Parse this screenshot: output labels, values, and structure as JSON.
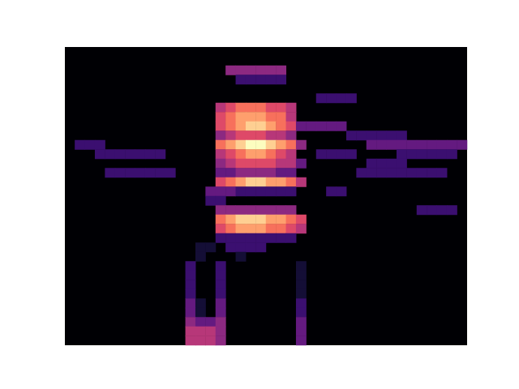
{
  "chart_data": {
    "type": "heatmap",
    "tick_labels": false,
    "grid": false,
    "xlim": [
      0,
      40
    ],
    "ylim": [
      0,
      32
    ],
    "value_range": [
      0,
      10
    ],
    "cells": [
      [
        16,
        29,
        4
      ],
      [
        17,
        29,
        4
      ],
      [
        18,
        29,
        4
      ],
      [
        19,
        29,
        4
      ],
      [
        20,
        29,
        4
      ],
      [
        21,
        29,
        4
      ],
      [
        17,
        28,
        2
      ],
      [
        18,
        28,
        2
      ],
      [
        19,
        28,
        2
      ],
      [
        20,
        28,
        2
      ],
      [
        21,
        28,
        2
      ],
      [
        25,
        26,
        2
      ],
      [
        26,
        26,
        2
      ],
      [
        27,
        26,
        2
      ],
      [
        28,
        26,
        2
      ],
      [
        15,
        25,
        5
      ],
      [
        16,
        25,
        6
      ],
      [
        17,
        25,
        7
      ],
      [
        18,
        25,
        7
      ],
      [
        19,
        25,
        7
      ],
      [
        20,
        25,
        6
      ],
      [
        21,
        25,
        6
      ],
      [
        22,
        25,
        5
      ],
      [
        15,
        24,
        6
      ],
      [
        16,
        24,
        7
      ],
      [
        17,
        24,
        8
      ],
      [
        18,
        24,
        8
      ],
      [
        19,
        24,
        8
      ],
      [
        20,
        24,
        7
      ],
      [
        21,
        24,
        7
      ],
      [
        22,
        24,
        5
      ],
      [
        15,
        23,
        6
      ],
      [
        16,
        23,
        7
      ],
      [
        17,
        23,
        8
      ],
      [
        18,
        23,
        9
      ],
      [
        19,
        23,
        9
      ],
      [
        20,
        23,
        8
      ],
      [
        21,
        23,
        7
      ],
      [
        22,
        23,
        6
      ],
      [
        23,
        23,
        3
      ],
      [
        24,
        23,
        3
      ],
      [
        25,
        23,
        3
      ],
      [
        26,
        23,
        3
      ],
      [
        27,
        23,
        3
      ],
      [
        15,
        22,
        4
      ],
      [
        16,
        22,
        5
      ],
      [
        17,
        22,
        6
      ],
      [
        18,
        22,
        6
      ],
      [
        19,
        22,
        6
      ],
      [
        20,
        22,
        5
      ],
      [
        21,
        22,
        5
      ],
      [
        22,
        22,
        4
      ],
      [
        28,
        22,
        2
      ],
      [
        29,
        22,
        2
      ],
      [
        30,
        22,
        2
      ],
      [
        31,
        22,
        2
      ],
      [
        32,
        22,
        2
      ],
      [
        33,
        22,
        2
      ],
      [
        1,
        21,
        2
      ],
      [
        2,
        21,
        2
      ],
      [
        3,
        21,
        2
      ],
      [
        15,
        21,
        7
      ],
      [
        16,
        21,
        8
      ],
      [
        17,
        21,
        9
      ],
      [
        18,
        21,
        10
      ],
      [
        19,
        21,
        10
      ],
      [
        20,
        21,
        9
      ],
      [
        21,
        21,
        8
      ],
      [
        22,
        21,
        7
      ],
      [
        23,
        21,
        4
      ],
      [
        30,
        21,
        3
      ],
      [
        31,
        21,
        3
      ],
      [
        32,
        21,
        3
      ],
      [
        33,
        21,
        3
      ],
      [
        34,
        21,
        3
      ],
      [
        35,
        21,
        3
      ],
      [
        36,
        21,
        3
      ],
      [
        37,
        21,
        3
      ],
      [
        38,
        21,
        3
      ],
      [
        39,
        21,
        3
      ],
      [
        3,
        20,
        2
      ],
      [
        4,
        20,
        2
      ],
      [
        5,
        20,
        2
      ],
      [
        6,
        20,
        2
      ],
      [
        7,
        20,
        2
      ],
      [
        8,
        20,
        2
      ],
      [
        9,
        20,
        2
      ],
      [
        15,
        20,
        5
      ],
      [
        16,
        20,
        6
      ],
      [
        17,
        20,
        7
      ],
      [
        18,
        20,
        8
      ],
      [
        19,
        20,
        8
      ],
      [
        20,
        20,
        7
      ],
      [
        21,
        20,
        6
      ],
      [
        22,
        20,
        5
      ],
      [
        25,
        20,
        2
      ],
      [
        26,
        20,
        2
      ],
      [
        27,
        20,
        2
      ],
      [
        28,
        20,
        2
      ],
      [
        33,
        20,
        2
      ],
      [
        34,
        20,
        2
      ],
      [
        35,
        20,
        2
      ],
      [
        36,
        20,
        2
      ],
      [
        37,
        20,
        2
      ],
      [
        38,
        20,
        2
      ],
      [
        15,
        19,
        4
      ],
      [
        16,
        19,
        5
      ],
      [
        17,
        19,
        6
      ],
      [
        18,
        19,
        6
      ],
      [
        19,
        19,
        6
      ],
      [
        20,
        19,
        6
      ],
      [
        21,
        19,
        5
      ],
      [
        22,
        19,
        5
      ],
      [
        23,
        19,
        3
      ],
      [
        30,
        19,
        2
      ],
      [
        31,
        19,
        2
      ],
      [
        32,
        19,
        2
      ],
      [
        33,
        19,
        2
      ],
      [
        4,
        18,
        2
      ],
      [
        5,
        18,
        2
      ],
      [
        6,
        18,
        2
      ],
      [
        7,
        18,
        2
      ],
      [
        8,
        18,
        2
      ],
      [
        9,
        18,
        2
      ],
      [
        10,
        18,
        2
      ],
      [
        15,
        18,
        3
      ],
      [
        16,
        18,
        3
      ],
      [
        17,
        18,
        4
      ],
      [
        18,
        18,
        4
      ],
      [
        19,
        18,
        4
      ],
      [
        20,
        18,
        4
      ],
      [
        21,
        18,
        3
      ],
      [
        22,
        18,
        3
      ],
      [
        29,
        18,
        2
      ],
      [
        30,
        18,
        2
      ],
      [
        31,
        18,
        2
      ],
      [
        32,
        18,
        2
      ],
      [
        33,
        18,
        2
      ],
      [
        34,
        18,
        2
      ],
      [
        35,
        18,
        2
      ],
      [
        36,
        18,
        2
      ],
      [
        37,
        18,
        2
      ],
      [
        15,
        17,
        6
      ],
      [
        16,
        17,
        7
      ],
      [
        17,
        17,
        8
      ],
      [
        18,
        17,
        9
      ],
      [
        19,
        17,
        9
      ],
      [
        20,
        17,
        8
      ],
      [
        21,
        17,
        8
      ],
      [
        22,
        17,
        7
      ],
      [
        23,
        17,
        5
      ],
      [
        14,
        16,
        3
      ],
      [
        15,
        16,
        3
      ],
      [
        16,
        16,
        3
      ],
      [
        17,
        16,
        2
      ],
      [
        18,
        16,
        2
      ],
      [
        19,
        16,
        2
      ],
      [
        20,
        16,
        2
      ],
      [
        21,
        16,
        2
      ],
      [
        22,
        16,
        2
      ],
      [
        26,
        16,
        2
      ],
      [
        27,
        16,
        2
      ],
      [
        14,
        15,
        2
      ],
      [
        15,
        15,
        2
      ],
      [
        15,
        14,
        4
      ],
      [
        16,
        14,
        4
      ],
      [
        17,
        14,
        4
      ],
      [
        18,
        14,
        4
      ],
      [
        19,
        14,
        4
      ],
      [
        20,
        14,
        4
      ],
      [
        21,
        14,
        4
      ],
      [
        22,
        14,
        4
      ],
      [
        35,
        14,
        2
      ],
      [
        36,
        14,
        2
      ],
      [
        37,
        14,
        2
      ],
      [
        38,
        14,
        2
      ],
      [
        15,
        13,
        7
      ],
      [
        16,
        13,
        8
      ],
      [
        17,
        13,
        9
      ],
      [
        18,
        13,
        9
      ],
      [
        19,
        13,
        9
      ],
      [
        20,
        13,
        8
      ],
      [
        21,
        13,
        8
      ],
      [
        22,
        13,
        7
      ],
      [
        23,
        13,
        6
      ],
      [
        15,
        12,
        6
      ],
      [
        16,
        12,
        7
      ],
      [
        17,
        12,
        8
      ],
      [
        18,
        12,
        8
      ],
      [
        19,
        12,
        8
      ],
      [
        20,
        12,
        7
      ],
      [
        21,
        12,
        7
      ],
      [
        22,
        12,
        6
      ],
      [
        23,
        12,
        5
      ],
      [
        15,
        11,
        2
      ],
      [
        16,
        11,
        2
      ],
      [
        17,
        11,
        2
      ],
      [
        18,
        11,
        2
      ],
      [
        19,
        11,
        2
      ],
      [
        20,
        11,
        2
      ],
      [
        21,
        11,
        2
      ],
      [
        22,
        11,
        2
      ],
      [
        13,
        10,
        1
      ],
      [
        14,
        10,
        1
      ],
      [
        16,
        10,
        2
      ],
      [
        17,
        10,
        2
      ],
      [
        18,
        10,
        2
      ],
      [
        19,
        10,
        2
      ],
      [
        13,
        9,
        1
      ],
      [
        17,
        9,
        1
      ],
      [
        12,
        8,
        2
      ],
      [
        15,
        8,
        2
      ],
      [
        23,
        8,
        1
      ],
      [
        12,
        7,
        2
      ],
      [
        15,
        7,
        2
      ],
      [
        23,
        7,
        1
      ],
      [
        12,
        6,
        2
      ],
      [
        15,
        6,
        2
      ],
      [
        23,
        6,
        1
      ],
      [
        12,
        5,
        2
      ],
      [
        15,
        5,
        2
      ],
      [
        23,
        5,
        1
      ],
      [
        12,
        4,
        3
      ],
      [
        13,
        4,
        1
      ],
      [
        15,
        4,
        3
      ],
      [
        23,
        4,
        2
      ],
      [
        12,
        3,
        3
      ],
      [
        13,
        3,
        1
      ],
      [
        15,
        3,
        3
      ],
      [
        23,
        3,
        2
      ],
      [
        12,
        2,
        4
      ],
      [
        13,
        2,
        3
      ],
      [
        14,
        2,
        3
      ],
      [
        15,
        2,
        4
      ],
      [
        23,
        2,
        3
      ],
      [
        12,
        1,
        5
      ],
      [
        13,
        1,
        5
      ],
      [
        14,
        1,
        5
      ],
      [
        15,
        1,
        4
      ],
      [
        23,
        1,
        3
      ],
      [
        12,
        0,
        5
      ],
      [
        13,
        0,
        5
      ],
      [
        14,
        0,
        5
      ],
      [
        15,
        0,
        4
      ],
      [
        23,
        0,
        3
      ]
    ]
  }
}
